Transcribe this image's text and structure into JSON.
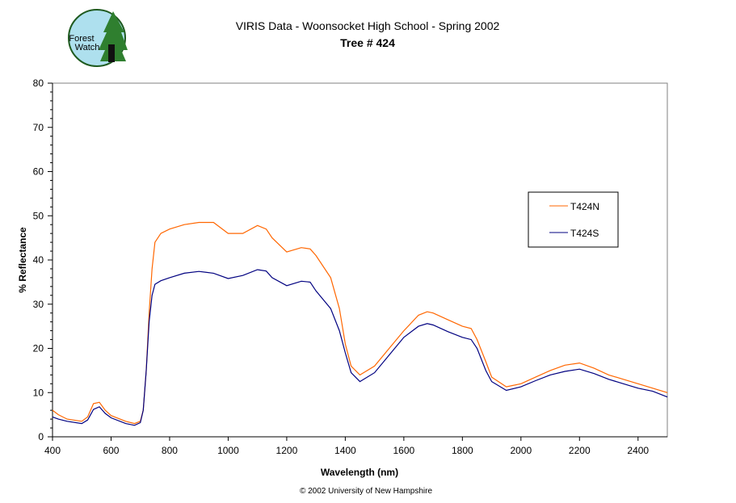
{
  "logo": {
    "text_line1": "Forest",
    "text_line2": "Watch"
  },
  "chart_data": {
    "type": "line",
    "title": "VIRIS Data - Woonsocket High School - Spring 2002",
    "subtitle": "Tree # 424",
    "xlabel": "Wavelength (nm)",
    "ylabel": "% Reflectance",
    "xlim": [
      400,
      2500
    ],
    "ylim": [
      0,
      80
    ],
    "xticks": [
      400,
      600,
      800,
      1000,
      1200,
      1400,
      1600,
      1800,
      2000,
      2200,
      2400
    ],
    "yticks": [
      0,
      10,
      20,
      30,
      40,
      50,
      60,
      70,
      80
    ],
    "grid": false,
    "legend_position": "right",
    "footer": "© 2002 University of New Hampshire",
    "series": [
      {
        "name": "T424N",
        "color": "#FF6600",
        "x": [
          400,
          420,
          450,
          500,
          520,
          540,
          560,
          580,
          600,
          650,
          680,
          700,
          710,
          720,
          730,
          740,
          750,
          770,
          800,
          850,
          900,
          950,
          1000,
          1050,
          1100,
          1130,
          1150,
          1200,
          1250,
          1280,
          1300,
          1350,
          1380,
          1400,
          1420,
          1450,
          1500,
          1550,
          1600,
          1650,
          1680,
          1700,
          1750,
          1800,
          1830,
          1850,
          1880,
          1900,
          1950,
          2000,
          2050,
          2100,
          2150,
          2200,
          2250,
          2300,
          2350,
          2400,
          2450,
          2500
        ],
        "y": [
          6,
          5,
          4,
          3.5,
          4.5,
          7.5,
          7.8,
          6,
          4.8,
          3.5,
          3,
          3.5,
          6,
          15,
          28,
          38,
          44,
          46,
          47,
          48,
          48.5,
          48.5,
          46,
          46,
          47.8,
          47,
          45,
          41.8,
          42.8,
          42.5,
          41,
          36,
          29,
          21,
          16,
          14,
          16,
          20,
          24,
          27.5,
          28.3,
          28,
          26.5,
          25,
          24.5,
          22,
          17,
          13.5,
          11.3,
          12,
          13.5,
          15,
          16.2,
          16.7,
          15.5,
          14,
          13,
          12,
          11,
          10
        ]
      },
      {
        "name": "T424S",
        "color": "#000080",
        "x": [
          400,
          420,
          450,
          500,
          520,
          540,
          560,
          580,
          600,
          650,
          680,
          700,
          710,
          720,
          730,
          740,
          750,
          770,
          800,
          850,
          900,
          950,
          1000,
          1050,
          1100,
          1130,
          1150,
          1200,
          1250,
          1280,
          1300,
          1350,
          1380,
          1400,
          1420,
          1450,
          1500,
          1550,
          1600,
          1650,
          1680,
          1700,
          1750,
          1800,
          1830,
          1850,
          1880,
          1900,
          1950,
          2000,
          2050,
          2100,
          2150,
          2200,
          2250,
          2300,
          2350,
          2400,
          2450,
          2500
        ],
        "y": [
          4.5,
          4,
          3.5,
          3,
          3.8,
          6.2,
          6.8,
          5.3,
          4.3,
          3,
          2.6,
          3.2,
          6,
          15,
          26,
          32,
          34.5,
          35.3,
          36,
          37,
          37.4,
          37,
          35.8,
          36.5,
          37.8,
          37.5,
          36,
          34.2,
          35.2,
          35,
          33,
          29,
          24,
          19,
          14.5,
          12.5,
          14.5,
          18.5,
          22.5,
          25,
          25.6,
          25.3,
          23.8,
          22.5,
          22,
          20,
          15,
          12.5,
          10.5,
          11.3,
          12.7,
          14,
          14.8,
          15.3,
          14.3,
          13,
          12,
          11,
          10.3,
          9
        ]
      }
    ]
  }
}
